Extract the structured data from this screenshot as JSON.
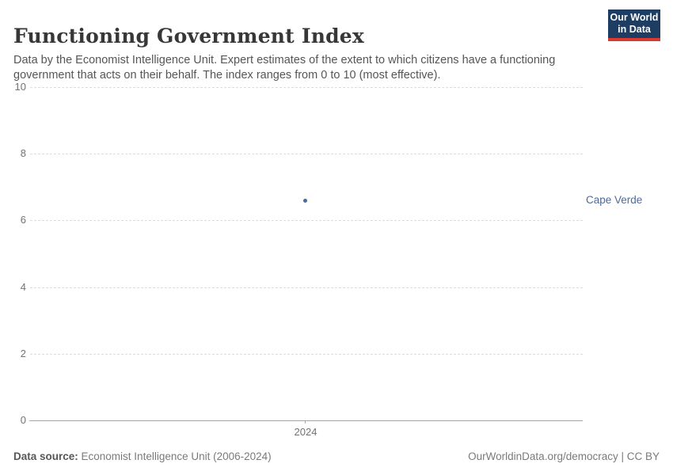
{
  "header": {
    "title": "Functioning Government Index",
    "subtitle": "Data by the Economist Intelligence Unit. Expert estimates of the extent to which citizens have a functioning government that acts on their behalf. The index ranges from 0 to 10 (most effective)."
  },
  "logo": {
    "line1": "Our World",
    "line2": "in Data",
    "background_color": "#1d3d63",
    "accent_color": "#d93a2d"
  },
  "chart_data": {
    "type": "scatter",
    "title": "Functioning Government Index",
    "x": [
      2024
    ],
    "series": [
      {
        "name": "Cape Verde",
        "values": [
          6.6
        ],
        "color": "#4c6a9c"
      }
    ],
    "xlabel": "",
    "ylabel": "",
    "ylim": [
      0,
      10
    ],
    "yticks": [
      0,
      2,
      4,
      6,
      8,
      10
    ],
    "xticks": [
      2024
    ],
    "grid": true,
    "gridline_style": "dashed",
    "gridline_color": "#dcdcdc",
    "axis_color": "#a5a5a5",
    "tick_label_color": "#737373",
    "legend_position": "entity-label-right"
  },
  "footer": {
    "source_label": "Data source:",
    "source_text": " Economist Intelligence Unit (2006-2024)",
    "license_text": "OurWorldinData.org/democracy | CC BY"
  }
}
